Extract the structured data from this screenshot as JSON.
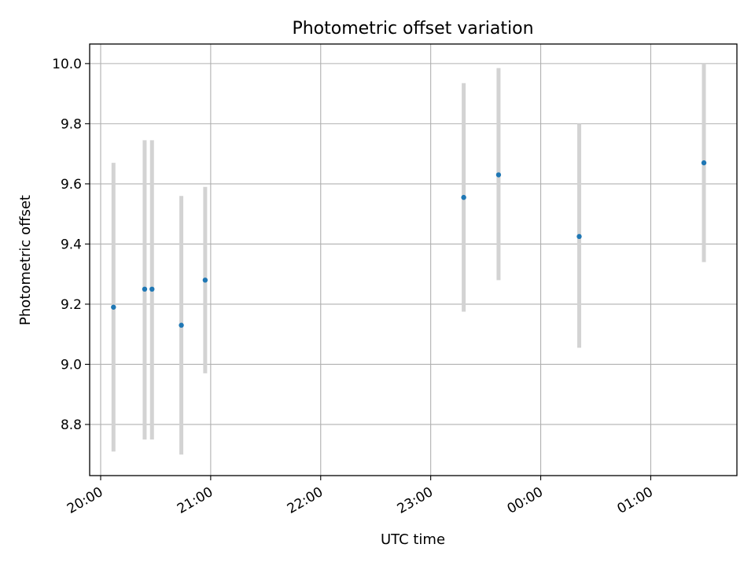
{
  "chart_data": {
    "type": "scatter",
    "title": "Photometric offset variation",
    "xlabel": "UTC time",
    "ylabel": "Photometric offset",
    "xlim": [
      "19:54",
      "01:47"
    ],
    "ylim": [
      8.63,
      10.065
    ],
    "x_ticks": [
      "20:00",
      "21:00",
      "22:00",
      "23:00",
      "00:00",
      "01:00"
    ],
    "y_ticks": [
      "8.8",
      "9.0",
      "9.2",
      "9.4",
      "9.6",
      "9.8",
      "10.0"
    ],
    "grid": true,
    "marker_color": "#1f77b4",
    "errorbar_color": "#d3d3d3",
    "points": [
      {
        "time": "20:07",
        "value": 9.19,
        "err_low": 8.71,
        "err_high": 9.67
      },
      {
        "time": "20:24",
        "value": 9.25,
        "err_low": 8.75,
        "err_high": 9.745
      },
      {
        "time": "20:28",
        "value": 9.25,
        "err_low": 8.75,
        "err_high": 9.745
      },
      {
        "time": "20:44",
        "value": 9.13,
        "err_low": 8.7,
        "err_high": 9.56
      },
      {
        "time": "20:57",
        "value": 9.28,
        "err_low": 8.97,
        "err_high": 9.59
      },
      {
        "time": "23:18",
        "value": 9.555,
        "err_low": 9.175,
        "err_high": 9.935
      },
      {
        "time": "23:37",
        "value": 9.63,
        "err_low": 9.28,
        "err_high": 9.985
      },
      {
        "time": "00:21",
        "value": 9.425,
        "err_low": 9.055,
        "err_high": 9.8
      },
      {
        "time": "01:29",
        "value": 9.67,
        "err_low": 9.34,
        "err_high": 10.0
      }
    ]
  }
}
